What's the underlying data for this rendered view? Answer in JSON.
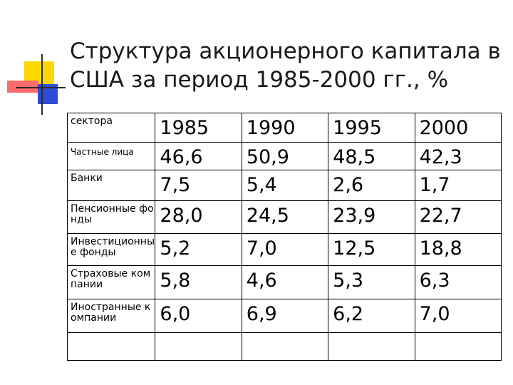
{
  "slide": {
    "title_line1": "Структура акционерного капитала в",
    "title_line2": "США за период 1985-2000 гг., %"
  },
  "table": {
    "header": [
      "сектора",
      "1985",
      "1990",
      "1995",
      "2000"
    ],
    "rows": [
      {
        "label": "Частные лица",
        "values": [
          "46,6",
          "50,9",
          "48,5",
          "42,3"
        ]
      },
      {
        "label": "Банки",
        "values": [
          "7,5",
          "5,4",
          "2,6",
          "1,7"
        ]
      },
      {
        "label": "Пенсионные фонды",
        "values": [
          "28,0",
          "24,5",
          "23,9",
          "22,7"
        ]
      },
      {
        "label": "Инвестиционные фонды",
        "values": [
          "5,2",
          "7,0",
          "12,5",
          "18,8"
        ]
      },
      {
        "label": "Страховые компании",
        "values": [
          "5,8",
          "4,6",
          "5,3",
          "6,3"
        ]
      },
      {
        "label": "Иностранные компании",
        "values": [
          "6,0",
          "6,9",
          "6,2",
          "7,0"
        ]
      }
    ]
  },
  "colors": {
    "accent_yellow": "#ffd700",
    "accent_red": "#ff6a6a",
    "accent_blue": "#2d4cd6"
  }
}
